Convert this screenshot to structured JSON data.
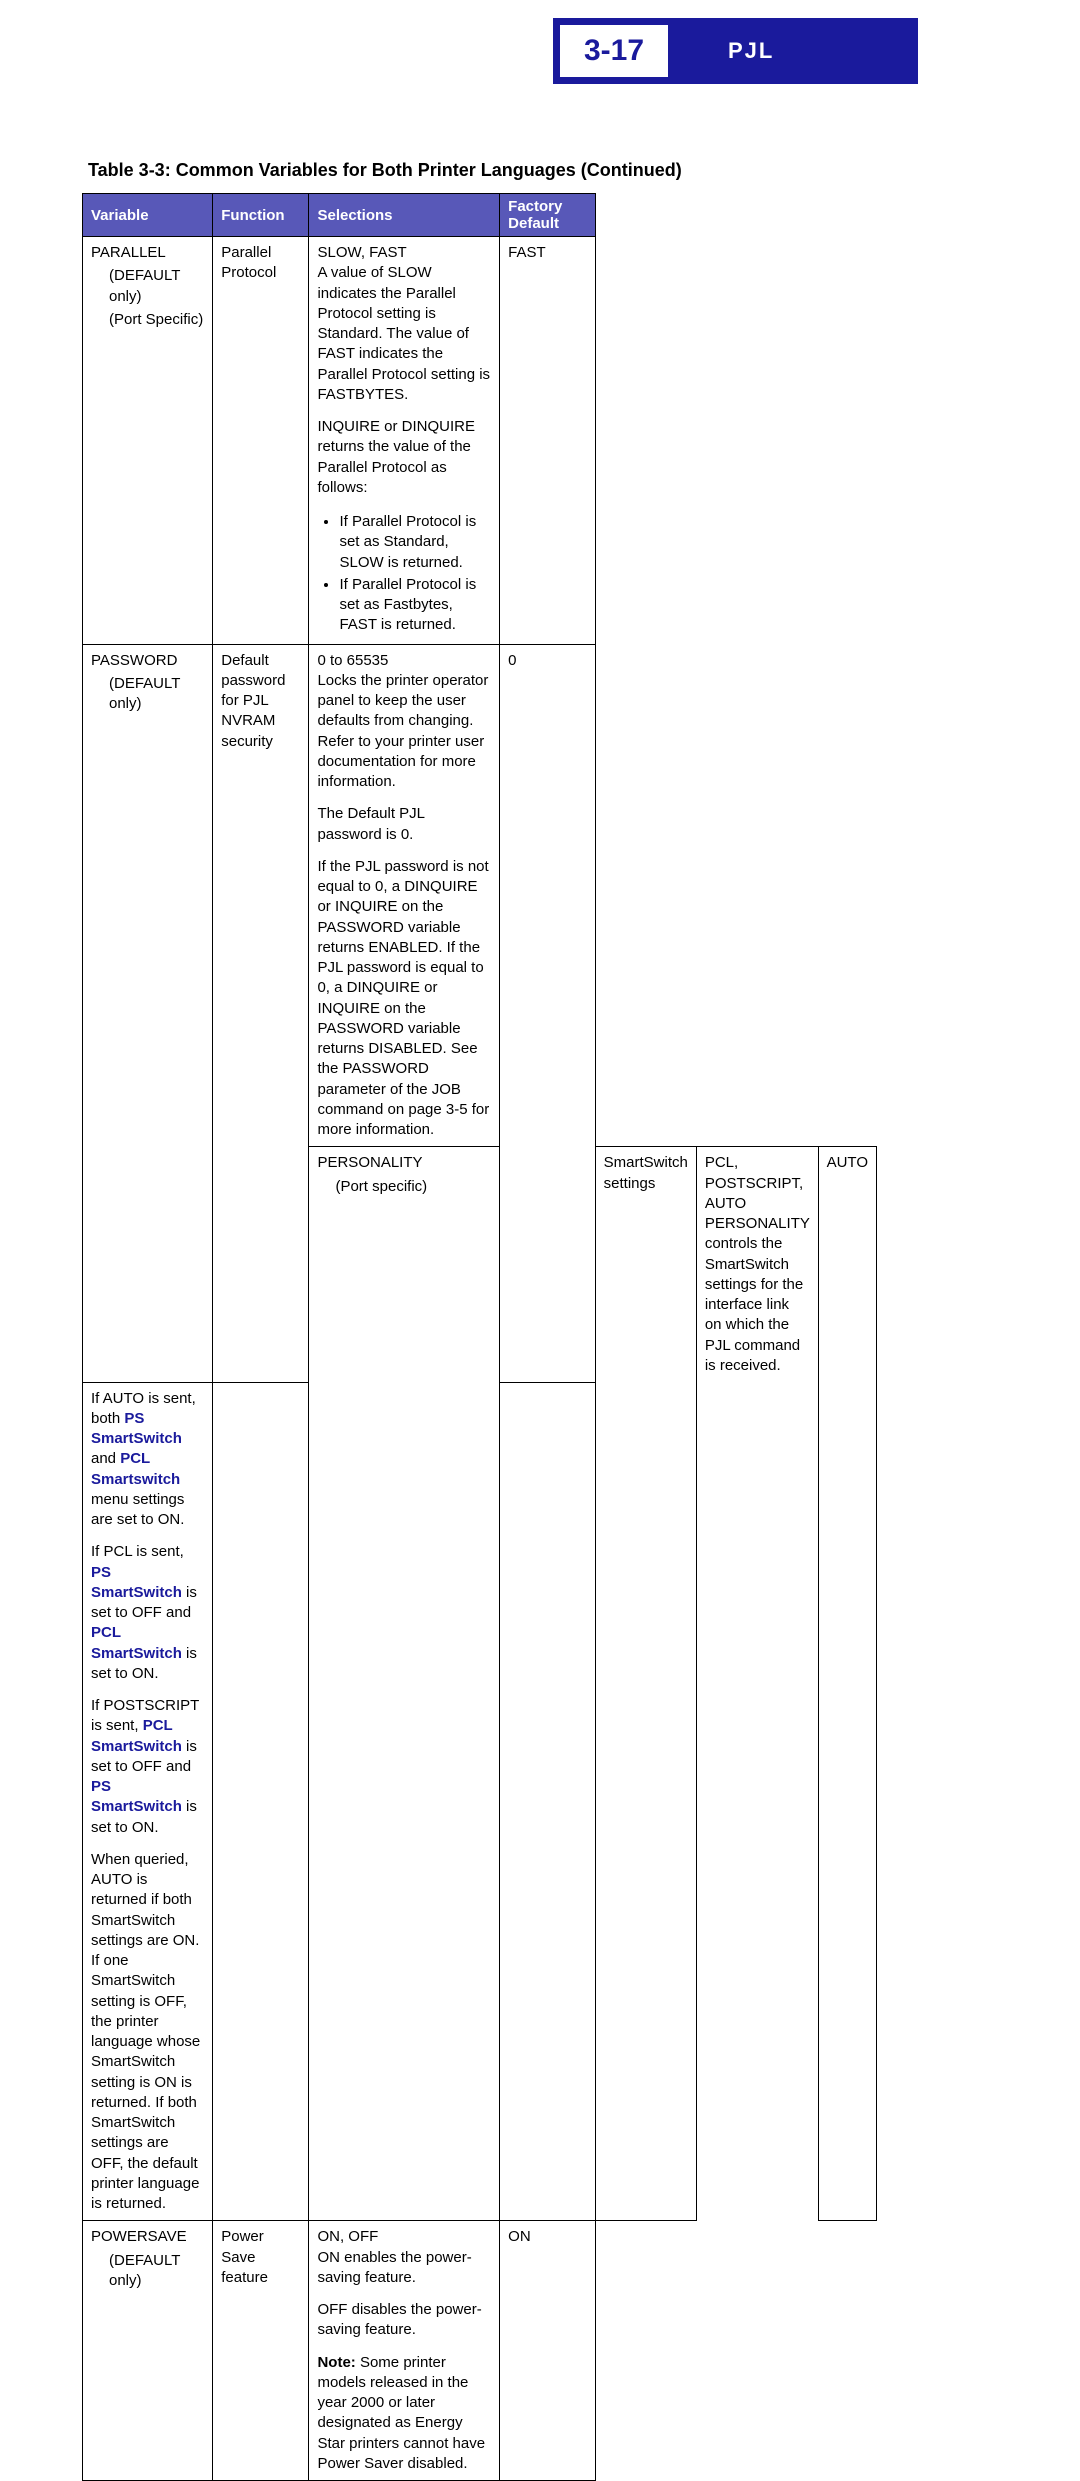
{
  "header": {
    "page_number": "3-17",
    "section": "PJL",
    "bg_color": "#1a1a9c",
    "box_bg": "#ffffff"
  },
  "table_caption": "Table 3-3:  Common Variables for Both Printer Languages (Continued)",
  "columns": {
    "c1": "Variable",
    "c2": "Function",
    "c3": "Selections",
    "c4": "Factory Default"
  },
  "parallel": {
    "var": "PARALLEL",
    "sub1": "(DEFAULT only)",
    "sub2": "(Port Specific)",
    "func": "Parallel Protocol",
    "sel1": "SLOW, FAST",
    "sel2": "A value of SLOW indicates the Parallel Protocol setting is Standard. The value of FAST indicates the Parallel Protocol setting is FASTBYTES.",
    "sel3": "INQUIRE or DINQUIRE returns the value of the Parallel Protocol as follows:",
    "sel4a": "If Parallel Protocol is set as Standard, SLOW is returned.",
    "sel4b": "If Parallel Protocol is set as Fastbytes, FAST is returned.",
    "def": "FAST"
  },
  "password": {
    "var": "PASSWORD",
    "sub1": "(DEFAULT only)",
    "func": "Default password for PJL NVRAM security",
    "sel1": "0 to 65535",
    "sel2": "Locks the printer operator panel to keep the user defaults from changing. Refer to your printer user documentation for more information.",
    "sel3": "The Default PJL password is 0.",
    "sel4": "If the PJL password is not equal to 0, a DINQUIRE or INQUIRE on the PASSWORD variable returns ENABLED. If the PJL password is equal to 0, a DINQUIRE or INQUIRE on the PASSWORD variable returns DISABLED. See the PASSWORD parameter of the JOB command on page 3-5 for more information.",
    "def": "0"
  },
  "personality": {
    "var": "PERSONALITY",
    "sub1": "(Port specific)",
    "func": "SmartSwitch settings",
    "sel1": "PCL, POSTSCRIPT, AUTO",
    "sel2": "PERSONALITY controls the SmartSwitch settings for the interface link on which the PJL command is received.",
    "sel3a": "If AUTO is sent, both ",
    "sel3b": "PS SmartSwitch",
    "sel3c": " and ",
    "sel3d": "PCL Smartswitch",
    "sel3e": " menu settings are set to ON.",
    "sel4a": "If PCL is sent, ",
    "sel4b": "PS SmartSwitch",
    "sel4c": " is set to OFF and ",
    "sel4d": "PCL SmartSwitch",
    "sel4e": " is set to ON.",
    "sel5a": "If POSTSCRIPT is sent, ",
    "sel5b": "PCL SmartSwitch",
    "sel5c": " is set to OFF and ",
    "sel5d": "PS SmartSwitch",
    "sel5e": " is set to ON.",
    "sel6": "When queried, AUTO is returned if both SmartSwitch settings are ON. If one SmartSwitch setting is OFF, the printer language whose SmartSwitch setting is ON is returned. If both SmartSwitch settings are OFF, the default printer language is returned.",
    "def": "AUTO"
  },
  "powersave": {
    "var": "POWERSAVE",
    "sub1": "(DEFAULT only)",
    "func": "Power Save feature",
    "sel1": "ON, OFF",
    "sel2": "ON enables the power-saving feature.",
    "sel3": "OFF disables the power-saving feature.",
    "sel4a": "Note:",
    "sel4b": " Some printer models released in the year 2000 or later designated as Energy Star printers cannot have Power Saver disabled.",
    "def": "ON"
  }
}
